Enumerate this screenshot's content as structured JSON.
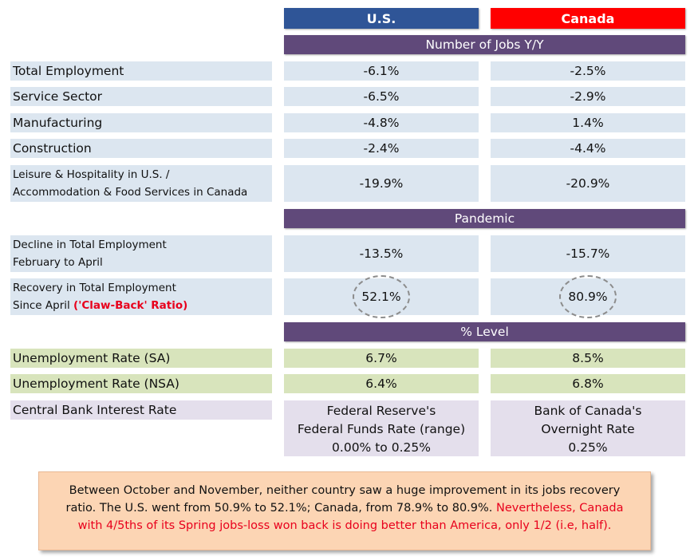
{
  "chart_data": {
    "type": "table",
    "columns": [
      "U.S.",
      "Canada"
    ],
    "sections": [
      {
        "title": "Number of Jobs Y/Y",
        "rows": [
          {
            "label": "Total Employment",
            "us": "-6.1%",
            "ca": "-2.5%"
          },
          {
            "label": "Service Sector",
            "us": "-6.5%",
            "ca": "-2.9%"
          },
          {
            "label": "Manufacturing",
            "us": "-4.8%",
            "ca": "1.4%"
          },
          {
            "label": "Construction",
            "us": "-2.4%",
            "ca": "-4.4%"
          },
          {
            "label_line1": "Leisure & Hospitality in U.S. /",
            "label_line2": "Accommodation & Food Services in Canada",
            "us": "-19.9%",
            "ca": "-20.9%"
          }
        ]
      },
      {
        "title": "Pandemic",
        "rows": [
          {
            "label_line1": "Decline in Total Employment",
            "label_line2": "February to April",
            "us": "-13.5%",
            "ca": "-15.7%"
          },
          {
            "label_line1": "Recovery in Total Employment",
            "label_line2": "Since April ",
            "label_highlight": "('Claw-Back' Ratio)",
            "us": "52.1%",
            "ca": "80.9%"
          }
        ]
      },
      {
        "title": "% Level",
        "rows": [
          {
            "label": "Unemployment Rate (SA)",
            "us": "6.7%",
            "ca": "8.5%"
          },
          {
            "label": "Unemployment Rate (NSA)",
            "us": "6.4%",
            "ca": "6.8%"
          },
          {
            "label": "Central Bank Interest Rate",
            "us_lines": [
              "Federal Reserve's",
              "Federal Funds Rate (range)",
              "0.00% to 0.25%"
            ],
            "ca_lines": [
              "Bank of Canada's",
              "Overnight Rate",
              "0.25%"
            ]
          }
        ]
      }
    ]
  },
  "note": {
    "text": "Between October and November, neither country saw a huge improvement in its jobs recovery ratio. The U.S. went from 50.9% to 52.1%; Canada, from 78.9% to 80.9%. ",
    "highlight": "Nevertheless, Canada with 4/5ths of its Spring jobs-loss won back is doing better than America, only 1/2 (i.e, half)."
  },
  "colors": {
    "us_header": "#2f5597",
    "canada_header": "#ff0000",
    "section_header": "#60497a",
    "row_blue": "#dce6f0",
    "row_green": "#d8e4bc",
    "row_lavender": "#e4dfec",
    "note_bg": "#fcd5b4",
    "highlight_red": "#e8001c"
  }
}
